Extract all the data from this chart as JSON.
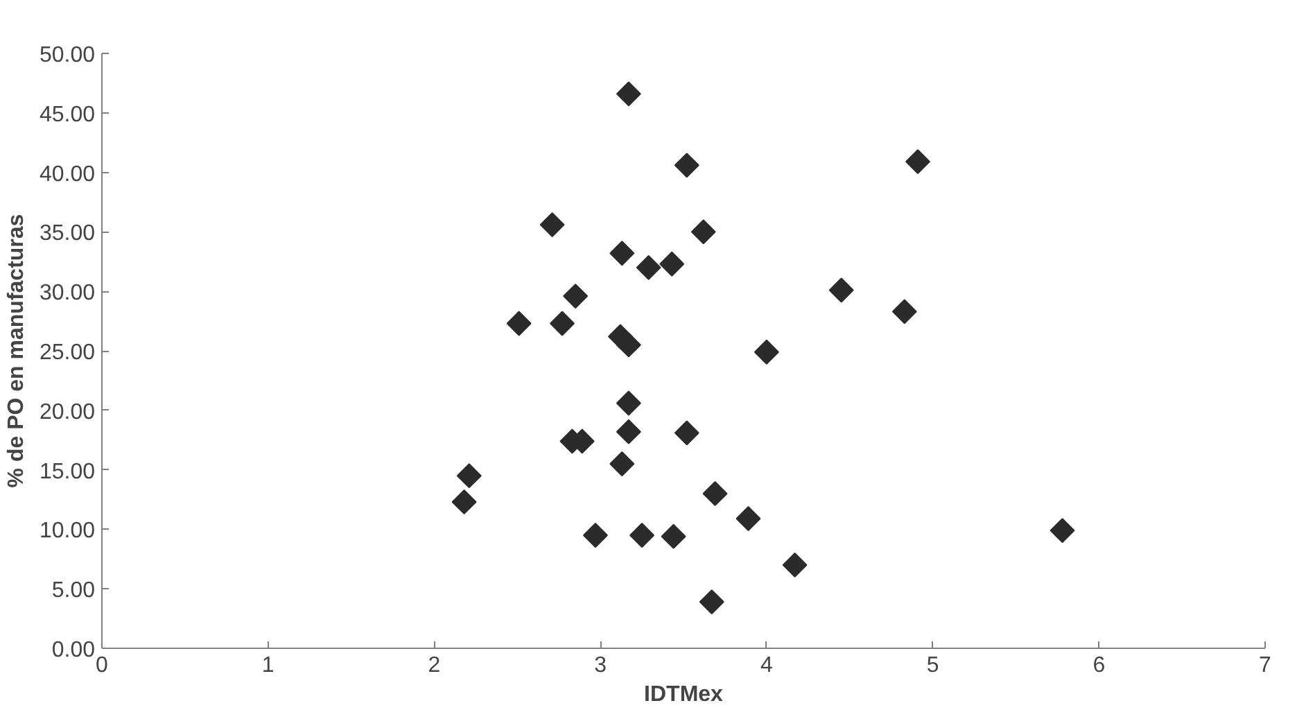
{
  "chart_data": {
    "type": "scatter",
    "xlabel": "IDTMex",
    "ylabel": "% de PO en manufacturas",
    "marker": "diamond",
    "grid": false,
    "xlim": [
      0,
      7
    ],
    "xticks": [
      0,
      1,
      2,
      3,
      4,
      5,
      6,
      7
    ],
    "ylim": [
      0,
      50
    ],
    "yticks": [
      {
        "value": 0,
        "label": "0.00"
      },
      {
        "value": 5,
        "label": "5.00"
      },
      {
        "value": 10,
        "label": "10.00"
      },
      {
        "value": 15,
        "label": "15.00"
      },
      {
        "value": 20,
        "label": "20.00"
      },
      {
        "value": 25,
        "label": "25.00"
      },
      {
        "value": 30,
        "label": "30.00"
      },
      {
        "value": 35,
        "label": "35.00"
      },
      {
        "value": 40,
        "label": "40.00"
      },
      {
        "value": 45,
        "label": "45.00"
      },
      {
        "value": 50,
        "label": "50.00"
      }
    ],
    "series": [
      {
        "color": "#2b2b2b",
        "x": [
          3.17,
          3.52,
          2.71,
          3.62,
          3.13,
          3.29,
          3.43,
          2.85,
          2.51,
          2.77,
          3.12,
          3.17,
          3.17,
          3.17,
          2.83,
          2.89,
          3.52,
          3.13,
          2.21,
          2.18,
          2.97,
          3.25,
          3.44,
          4.91,
          4.45,
          4.83,
          4.0,
          3.69,
          3.89,
          4.17,
          3.67,
          5.78
        ],
        "values": [
          46.6,
          40.6,
          35.6,
          35.0,
          33.2,
          32.0,
          32.3,
          29.6,
          27.3,
          27.3,
          26.2,
          25.5,
          20.6,
          18.2,
          17.4,
          17.4,
          18.1,
          15.5,
          14.5,
          12.3,
          9.5,
          9.5,
          9.4,
          40.9,
          30.1,
          28.3,
          24.9,
          13.0,
          10.9,
          7.0,
          3.9,
          9.9
        ]
      }
    ]
  }
}
